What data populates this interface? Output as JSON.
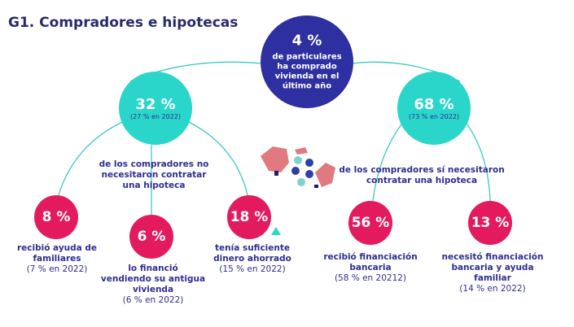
{
  "title": "G1. Compradores e hipotecas",
  "colors": {
    "navy": "#2e2fa0",
    "teal": "#2ad6ca",
    "pink": "#e31b5e",
    "text": "#2f2f8f",
    "line": "#3cc9c2"
  },
  "top": {
    "value": "4 %",
    "text": [
      "de particulares",
      "ha comprado",
      "vivienda en el",
      "último año"
    ]
  },
  "left": {
    "value": "32 %",
    "sub": "(27 % en 2022)",
    "text": [
      "de los compradores no",
      "necesitaron contratar",
      "una hipoteca"
    ],
    "items": [
      {
        "value": "8 %",
        "text": [
          "recibió ayuda de",
          "familiares"
        ],
        "sub": "(7 % en 2022)"
      },
      {
        "value": "6 %",
        "text": [
          "lo financió",
          "vendiendo su antigua",
          "vivienda"
        ],
        "sub": "(6 % en 2022)"
      },
      {
        "value": "18 %",
        "text": [
          "tenía suficiente",
          "dinero ahorrado"
        ],
        "sub": "(15 % en 2022)"
      }
    ]
  },
  "right": {
    "value": "68 %",
    "sub": "(73 % en 2022)",
    "text": [
      "de los compradores sí necesitaron",
      "contratar una hipoteca"
    ],
    "items": [
      {
        "value": "56 %",
        "text": [
          "recibió financiación",
          "bancaria"
        ],
        "sub": "(58 % en 20212)"
      },
      {
        "value": "13 %",
        "text": [
          "necesitó financiación",
          "bancaria y ayuda",
          "familiar"
        ],
        "sub": "(14 % en 2022)"
      }
    ]
  },
  "illustration": "broken-piggy-bank-icon"
}
